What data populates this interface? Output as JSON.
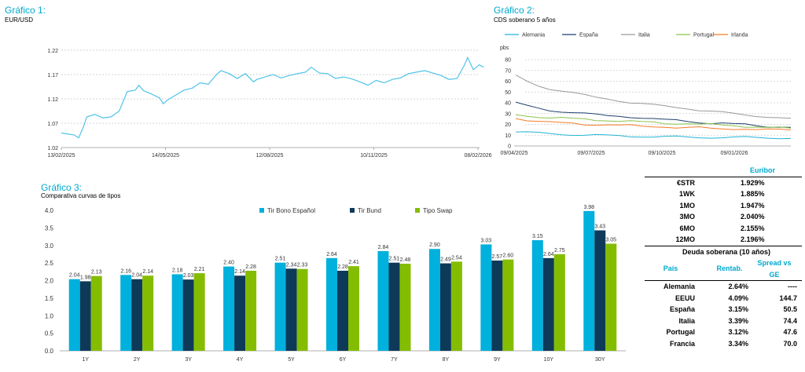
{
  "chart1": {
    "title": "Gráfico 1:",
    "subtitle": "EUR/USD"
  },
  "chart2": {
    "title": "Gráfico 2:",
    "subtitle": "CDS soberano 5 años"
  },
  "chart3": {
    "title": "Gráfico 3:",
    "subtitle": "Comparativa curvas de tipos"
  },
  "colors": {
    "title_blue": "#00A9CE",
    "eurusd_line": "#4FC3E8",
    "alemania": "#21B5D6",
    "espana": "#1F3F6E",
    "italia": "#999999",
    "portugal": "#8BC34A",
    "irlanda": "#F57C28",
    "bono_espanol": "#00B0DD",
    "bund": "#0E3A5A",
    "swap": "#84BD00"
  },
  "chart_data": [
    {
      "type": "line",
      "x_ticks": [
        "13/02/2025",
        "14/05/2025",
        "12/08/2025",
        "10/11/2025",
        "08/02/2026"
      ],
      "ylim": [
        1.02,
        1.22
      ],
      "y_ticks": [
        "1.02",
        "1.07",
        "1.12",
        "1.17",
        "1.22"
      ],
      "grid": true,
      "series": [
        {
          "x": [
            "13/02/2025",
            "18/02/2025",
            "24/02/2025",
            "28/02/2025",
            "04/03/2025",
            "07/03/2025",
            "14/03/2025",
            "21/03/2025",
            "28/03/2025",
            "04/04/2025",
            "11/04/2025",
            "18/04/2025",
            "21/04/2025",
            "25/04/2025",
            "02/05/2025",
            "09/05/2025",
            "12/05/2025",
            "16/05/2025",
            "23/05/2025",
            "30/05/2025",
            "06/06/2025",
            "13/06/2025",
            "20/06/2025",
            "27/06/2025",
            "01/07/2025",
            "08/07/2025",
            "15/07/2025",
            "22/07/2025",
            "29/07/2025",
            "01/08/2025",
            "08/08/2025",
            "15/08/2025",
            "22/08/2025",
            "29/08/2025",
            "05/09/2025",
            "12/09/2025",
            "17/09/2025",
            "24/09/2025",
            "01/10/2025",
            "08/10/2025",
            "15/10/2025",
            "22/10/2025",
            "29/10/2025",
            "05/11/2025",
            "12/11/2025",
            "19/11/2025",
            "26/11/2025",
            "03/12/2025",
            "10/12/2025",
            "17/12/2025",
            "24/12/2025",
            "31/12/2025",
            "07/01/2026",
            "14/01/2026",
            "21/01/2026",
            "27/01/2026",
            "30/01/2026",
            "04/02/2026",
            "09/02/2026",
            "13/02/2026"
          ],
          "values": [
            1.05,
            1.048,
            1.046,
            1.04,
            1.062,
            1.083,
            1.088,
            1.081,
            1.083,
            1.095,
            1.135,
            1.138,
            1.148,
            1.137,
            1.13,
            1.122,
            1.11,
            1.118,
            1.128,
            1.138,
            1.142,
            1.153,
            1.15,
            1.17,
            1.178,
            1.172,
            1.162,
            1.172,
            1.155,
            1.16,
            1.165,
            1.17,
            1.163,
            1.168,
            1.172,
            1.175,
            1.185,
            1.173,
            1.172,
            1.162,
            1.165,
            1.161,
            1.155,
            1.148,
            1.158,
            1.153,
            1.16,
            1.163,
            1.172,
            1.175,
            1.178,
            1.173,
            1.168,
            1.16,
            1.162,
            1.188,
            1.205,
            1.18,
            1.19,
            1.185
          ]
        }
      ]
    },
    {
      "type": "line",
      "ylabel": "pbs",
      "ylim": [
        0,
        80
      ],
      "y_ticks": [
        "0",
        "10",
        "20",
        "30",
        "40",
        "50",
        "60",
        "70",
        "80"
      ],
      "x_ticks": [
        "09/04/2025",
        "09/07/2025",
        "09/10/2025",
        "09/01/2026"
      ],
      "legend": "top",
      "grid": true,
      "series": [
        {
          "name": "Alemania",
          "values": [
            13,
            12.5,
            12,
            11.5,
            11,
            10.5,
            10,
            10,
            9.5,
            9.5,
            9,
            9,
            8.5,
            8.5,
            8.5,
            8,
            8,
            8,
            8,
            8,
            8,
            7.5,
            7.5,
            7.5,
            7.5
          ]
        },
        {
          "name": "España",
          "values": [
            40,
            37,
            35,
            33,
            32,
            31,
            30,
            29,
            28,
            28,
            27,
            26,
            25,
            24,
            24,
            23,
            22,
            21,
            21,
            20,
            20,
            19,
            18,
            18,
            17
          ]
        },
        {
          "name": "Italia",
          "values": [
            65,
            60,
            56,
            53,
            51,
            49,
            47,
            45,
            44,
            42,
            40,
            39,
            38,
            37,
            36,
            35,
            33,
            32,
            31,
            30,
            29,
            28,
            27,
            26,
            25
          ]
        },
        {
          "name": "Portugal",
          "values": [
            29,
            28,
            27,
            26,
            26,
            25,
            25,
            24,
            24,
            23,
            23,
            22,
            22,
            21,
            21,
            21,
            20,
            20,
            19,
            19,
            18,
            18,
            17,
            17,
            16
          ]
        },
        {
          "name": "Irlanda",
          "values": [
            26,
            24,
            23,
            22,
            21,
            21,
            20,
            20,
            20,
            19,
            19,
            18,
            18,
            18,
            17,
            17,
            17,
            16,
            16,
            16,
            16,
            15,
            15,
            15,
            15
          ]
        }
      ]
    },
    {
      "type": "bar",
      "categories": [
        "1Y",
        "2Y",
        "3Y",
        "4Y",
        "5Y",
        "6Y",
        "7Y",
        "8Y",
        "9Y",
        "10Y",
        "30Y"
      ],
      "ylim": [
        0,
        4.0
      ],
      "y_ticks": [
        "0.0",
        "0.5",
        "1.0",
        "1.5",
        "2.0",
        "2.5",
        "3.0",
        "3.5",
        "4.0"
      ],
      "legend": "top",
      "series": [
        {
          "name": "Tir Bono Español",
          "values": [
            2.04,
            2.16,
            2.18,
            2.4,
            2.51,
            2.64,
            2.84,
            2.9,
            3.03,
            3.15,
            3.98
          ],
          "labels": [
            "2.04",
            "2.16",
            "2.18",
            "2.40",
            "2.51",
            "2.64",
            "2.84",
            "2.90",
            "3.03",
            "3.15",
            "3.98"
          ]
        },
        {
          "name": "Tir Bund",
          "values": [
            1.98,
            2.04,
            2.03,
            2.14,
            2.34,
            2.28,
            2.51,
            2.49,
            2.57,
            2.64,
            3.43
          ],
          "labels": [
            "1.98",
            "2.04",
            "2.03",
            "2.14",
            "2.34",
            "2.28",
            "2.51",
            "2.49",
            "2.57",
            "2.64",
            "3.43"
          ]
        },
        {
          "name": "Tipo Swap",
          "values": [
            2.13,
            2.14,
            2.21,
            2.28,
            2.33,
            2.41,
            2.48,
            2.54,
            2.6,
            2.75,
            3.05
          ],
          "labels": [
            "2.13",
            "2.14",
            "2.21",
            "2.28",
            "2.33",
            "2.41",
            "2.48",
            "2.54",
            "2.60",
            "2.75",
            "3.05"
          ]
        }
      ]
    }
  ],
  "euribor": {
    "title": "Euribor",
    "rows": [
      {
        "label": "€STR",
        "value": "1.929%"
      },
      {
        "label": "1WK",
        "value": "1.885%"
      },
      {
        "label": "1MO",
        "value": "1.947%"
      },
      {
        "label": "3MO",
        "value": "2.040%"
      },
      {
        "label": "6MO",
        "value": "2.155%"
      },
      {
        "label": "12MO",
        "value": "2.196%"
      }
    ]
  },
  "deuda": {
    "title": "Deuda soberana (10 años)",
    "headers": [
      "País",
      "Rentab.",
      "Spread vs GE"
    ],
    "rows": [
      {
        "pais": "Alemania",
        "rentab": "2.64%",
        "spread": "----"
      },
      {
        "pais": "EEUU",
        "rentab": "4.09%",
        "spread": "144.7"
      },
      {
        "pais": "España",
        "rentab": "3.15%",
        "spread": "50.5"
      },
      {
        "pais": "Italia",
        "rentab": "3.39%",
        "spread": "74.4"
      },
      {
        "pais": "Portugal",
        "rentab": "3.12%",
        "spread": "47.6"
      },
      {
        "pais": "Francia",
        "rentab": "3.34%",
        "spread": "70.0"
      }
    ]
  }
}
